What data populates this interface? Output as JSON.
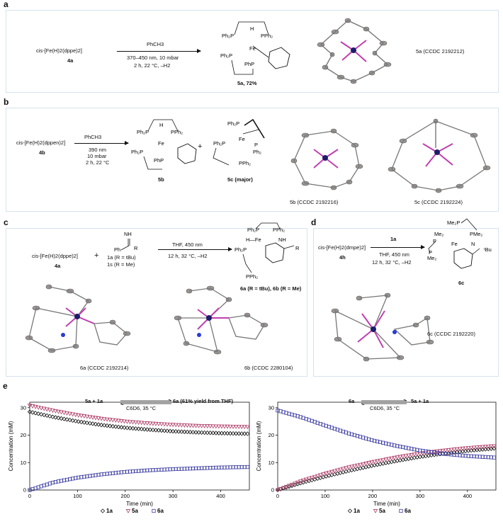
{
  "panel_a": {
    "label": "a",
    "reactant": "cis-[Fe(H)2(dppe)2]",
    "reactant_id": "4a",
    "conditions": [
      "PhCH3",
      "370–450 nm, 10 mbar",
      "2 h, 22 °C, –H2"
    ],
    "product": "5a, 72%",
    "crystal": "5a (CCDC 2192212)"
  },
  "panel_b": {
    "label": "b",
    "reactant": "cis-[Fe(H)2(dppen)2]",
    "reactant_id": "4b",
    "conditions": [
      "PhCH3",
      "390 nm",
      "10 mbar",
      "2 h, 22 °C"
    ],
    "plus": "+",
    "product1": "5b",
    "product2": "5c (major)",
    "crystal1": "5b (CCDC 2192216)",
    "crystal2": "5c (CCDC 2192224)"
  },
  "panel_c": {
    "label": "c",
    "reactant": "cis-[Fe(H)2(dppe)2]",
    "reactant_id": "4a",
    "plus": "+",
    "imine_line1": "1a (R = tBu)",
    "imine_line2": "1s (R = Me)",
    "conditions": [
      "THF, 450 nm",
      "12 h, 32 °C, –H2"
    ],
    "product": "6a (R = tBu), 6b (R = Me)",
    "crystal1": "6a (CCDC 2192214)",
    "crystal2": "6b (CCDC 2280104)"
  },
  "panel_d": {
    "label": "d",
    "reactant": "cis-[Fe(H)2(dmpe)2]",
    "reactant_id": "4h",
    "reagent": "1a",
    "conditions": [
      "THF, 450 nm",
      "12 h, 32 °C, –H2"
    ],
    "product": "6c",
    "crystal": "6c (CCDC 2192220)"
  },
  "panel_e": {
    "label": "e",
    "left_eq": {
      "lhs": "5a + 1a",
      "cond": "C6D6, 35 °C",
      "rhs": "6a (61% yield from THF)"
    },
    "right_eq": {
      "lhs": "6a",
      "cond": "C6D6, 35 °C",
      "rhs": "5a + 1a"
    }
  },
  "colors": {
    "s1a": "#111111",
    "s5a": "#b0406a",
    "s6a": "#3a3aa0",
    "border": "#d6e2ef"
  },
  "chart_data": [
    {
      "type": "scatter",
      "xlabel": "Time (min)",
      "ylabel": "Concentration (mM)",
      "xlim": [
        0,
        460
      ],
      "ylim": [
        0,
        32
      ],
      "xticks": [
        0,
        100,
        200,
        300,
        400
      ],
      "yticks": [
        0,
        10,
        20,
        30
      ],
      "legend_position": "bottom",
      "series": [
        {
          "name": "1a",
          "marker": "diamond",
          "x": [
            0,
            50,
            100,
            150,
            200,
            250,
            300,
            350,
            400,
            460
          ],
          "values": [
            28.5,
            26.6,
            25.0,
            23.7,
            22.7,
            22.0,
            21.4,
            21.0,
            20.7,
            20.5
          ]
        },
        {
          "name": "5a",
          "marker": "triangle-down",
          "x": [
            0,
            50,
            100,
            150,
            200,
            250,
            300,
            350,
            400,
            460
          ],
          "values": [
            30.8,
            28.9,
            27.3,
            26.0,
            25.0,
            24.3,
            23.8,
            23.4,
            23.2,
            23.0
          ]
        },
        {
          "name": "6a",
          "marker": "square",
          "x": [
            0,
            50,
            100,
            150,
            200,
            250,
            300,
            350,
            400,
            460
          ],
          "values": [
            0.0,
            2.8,
            4.5,
            5.7,
            6.6,
            7.2,
            7.6,
            7.9,
            8.2,
            8.4
          ]
        }
      ]
    },
    {
      "type": "scatter",
      "xlabel": "Time (min)",
      "ylabel": "Concentration (mM)",
      "xlim": [
        0,
        460
      ],
      "ylim": [
        0,
        32
      ],
      "xticks": [
        0,
        100,
        200,
        300,
        400
      ],
      "yticks": [
        0,
        10,
        20,
        30
      ],
      "legend_position": "bottom",
      "series": [
        {
          "name": "1a",
          "marker": "diamond",
          "x": [
            0,
            50,
            100,
            150,
            200,
            250,
            300,
            350,
            400,
            460
          ],
          "values": [
            0.0,
            2.6,
            4.9,
            7.0,
            8.9,
            10.6,
            12.1,
            13.3,
            14.3,
            15.2
          ]
        },
        {
          "name": "5a",
          "marker": "triangle-down",
          "x": [
            0,
            50,
            100,
            150,
            200,
            250,
            300,
            350,
            400,
            460
          ],
          "values": [
            0.0,
            3.3,
            6.0,
            8.3,
            10.2,
            11.9,
            13.3,
            14.4,
            15.3,
            16.1
          ]
        },
        {
          "name": "6a",
          "marker": "square",
          "x": [
            0,
            50,
            100,
            150,
            200,
            250,
            300,
            350,
            400,
            460
          ],
          "values": [
            29.0,
            26.5,
            23.5,
            20.6,
            18.1,
            16.1,
            14.4,
            13.2,
            12.4,
            11.8
          ]
        }
      ]
    }
  ]
}
